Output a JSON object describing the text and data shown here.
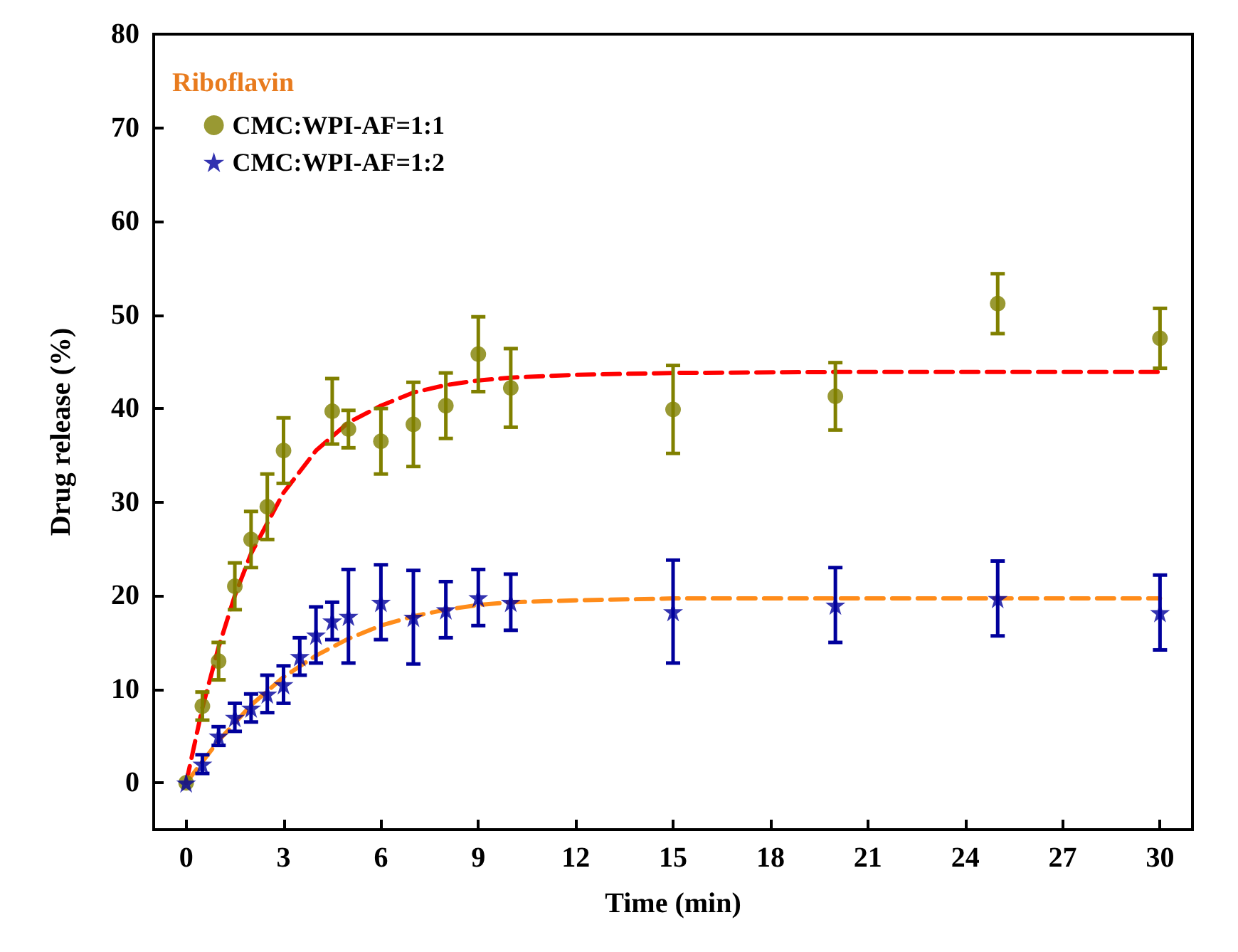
{
  "chart_data": {
    "type": "scatter",
    "xlabel": "Time (min)",
    "ylabel": "Drug release (%)",
    "legend_title": "Riboflavin",
    "legend": "top left",
    "grid": false,
    "xlim": [
      -1,
      31
    ],
    "xticks": [
      0,
      3,
      6,
      9,
      12,
      15,
      18,
      21,
      24,
      27,
      30
    ],
    "ylim": [
      -5,
      80
    ],
    "yticks": [
      0,
      10,
      20,
      30,
      40,
      50,
      60,
      70,
      80
    ],
    "series": [
      {
        "name": "CMC:WPI-AF=1:1",
        "color": "#808000",
        "marker": "circle",
        "x": [
          0,
          0.5,
          1,
          1.5,
          2,
          2.5,
          3,
          4.5,
          5,
          6,
          7,
          8,
          9,
          10,
          15,
          20,
          25,
          30
        ],
        "values": [
          0,
          8.2,
          13,
          21,
          26,
          29.5,
          35.5,
          39.7,
          37.8,
          36.5,
          38.3,
          40.3,
          45.8,
          42.2,
          39.9,
          41.3,
          51.2,
          47.5
        ],
        "errors": [
          null,
          1.5,
          2,
          2.5,
          3,
          3.5,
          3.5,
          3.5,
          2,
          3.5,
          4.5,
          3.5,
          4,
          4.2,
          4.7,
          3.6,
          3.2,
          3.2
        ]
      },
      {
        "name": "CMC:WPI-AF=1:2",
        "color": "#00009c",
        "marker": "star",
        "x": [
          0,
          0.5,
          1,
          1.5,
          2,
          2.5,
          3,
          3.5,
          4,
          4.5,
          5,
          6,
          7,
          8,
          9,
          10,
          15,
          20,
          25,
          30
        ],
        "values": [
          0,
          2,
          5,
          7,
          8,
          9.5,
          10.5,
          13.5,
          15.8,
          17.3,
          17.8,
          19.3,
          17.7,
          18.5,
          19.8,
          19.3,
          18.3,
          19,
          19.7,
          18.2
        ],
        "errors": [
          null,
          1,
          1,
          1.5,
          1.5,
          2,
          2,
          2,
          3,
          2,
          5,
          4,
          5,
          3,
          3,
          3,
          5.5,
          4,
          4,
          4
        ]
      },
      {
        "type": "line",
        "color": "#ff0000",
        "line_style": "dashed",
        "marker": "none",
        "x": [
          0,
          0.5,
          1,
          1.5,
          2,
          3,
          4,
          5,
          6,
          7,
          8,
          9,
          10,
          12,
          15,
          20,
          30
        ],
        "values": [
          0,
          8,
          14.5,
          20,
          24.5,
          31,
          35.5,
          38.5,
          40.3,
          41.7,
          42.5,
          43,
          43.3,
          43.6,
          43.8,
          43.9,
          43.9
        ]
      },
      {
        "type": "line",
        "color": "#ff8c1a",
        "line_style": "dashed",
        "marker": "none",
        "x": [
          0,
          1,
          2,
          3,
          4,
          5,
          6,
          7,
          8,
          9,
          10,
          12,
          15,
          30
        ],
        "values": [
          0,
          4.5,
          8.3,
          11.3,
          13.6,
          15.4,
          16.8,
          17.8,
          18.5,
          19,
          19.3,
          19.5,
          19.7,
          19.7
        ]
      }
    ]
  }
}
